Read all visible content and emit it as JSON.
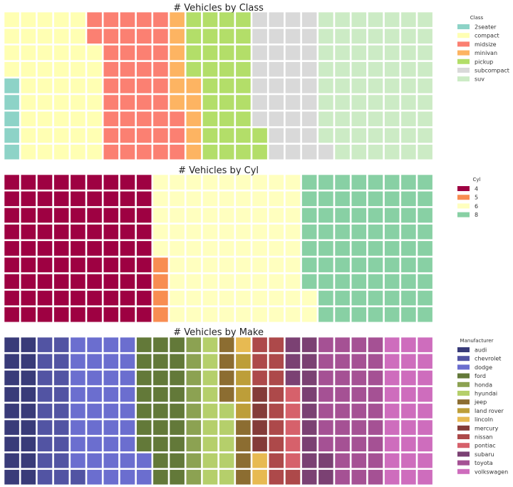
{
  "chart_data": [
    {
      "type": "waffle",
      "title": "# Vehicles by Class",
      "rows": 9,
      "columns": 26,
      "legend_title": "Class",
      "legend_position": "right",
      "categories": [
        "2seater",
        "compact",
        "midsize",
        "minivan",
        "pickup",
        "subcompact",
        "suv"
      ],
      "values": [
        5,
        47,
        41,
        11,
        33,
        35,
        62
      ],
      "colors": [
        "#8dd3c7",
        "#ffffb3",
        "#fb8072",
        "#fdb462",
        "#b3de69",
        "#d9d9d9",
        "#ccebc5"
      ]
    },
    {
      "type": "waffle",
      "title": "# Vehicles by Cyl",
      "rows": 9,
      "columns": 26,
      "legend_title": "Cyl",
      "legend_position": "right",
      "categories": [
        "4",
        "5",
        "6",
        "8"
      ],
      "values": [
        81,
        4,
        79,
        70
      ],
      "colors": [
        "#9e0142",
        "#f88d52",
        "#ffffbf",
        "#88d0a4"
      ]
    },
    {
      "type": "waffle",
      "title": "# Vehicles by Make",
      "rows": 9,
      "columns": 26,
      "legend_title": "Manufacturer",
      "legend_position": "right",
      "categories": [
        "audi",
        "chevrolet",
        "dodge",
        "ford",
        "honda",
        "hyundai",
        "jeep",
        "land rover",
        "lincoln",
        "mercury",
        "nissan",
        "pontiac",
        "subaru",
        "toyota",
        "volkswagen"
      ],
      "values": [
        18,
        19,
        37,
        25,
        9,
        14,
        8,
        4,
        3,
        4,
        13,
        5,
        14,
        34,
        27
      ],
      "colors": [
        "#393b79",
        "#5254a3",
        "#6b6ecf",
        "#637939",
        "#8ca252",
        "#b5cf6b",
        "#8c6d31",
        "#bd9e39",
        "#e7ba52",
        "#843c39",
        "#ad494a",
        "#d6616b",
        "#7b4173",
        "#a55194",
        "#ce6dbd"
      ]
    }
  ]
}
